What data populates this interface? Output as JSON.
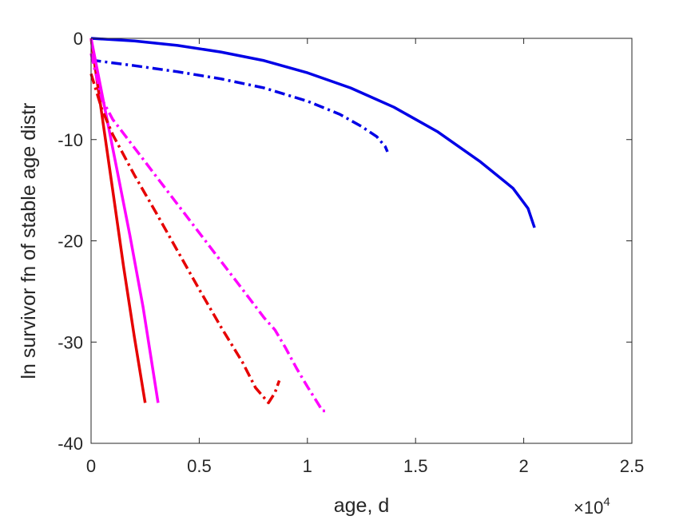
{
  "chart_data": {
    "type": "line",
    "title": "",
    "xlabel": "age, d",
    "ylabel": "ln survivor fn of stable age distr",
    "x_multiplier": {
      "base": "×10",
      "exponent": "4"
    },
    "xlim": [
      0,
      25000
    ],
    "ylim": [
      -40,
      0
    ],
    "xticks": [
      0,
      5000,
      10000,
      15000,
      20000,
      25000
    ],
    "xtick_labels": [
      "0",
      "0.5",
      "1",
      "1.5",
      "2",
      "2.5"
    ],
    "yticks": [
      -40,
      -30,
      -20,
      -10,
      0
    ],
    "ytick_labels": [
      "-40",
      "-30",
      "-20",
      "-10",
      "0"
    ],
    "grid": false,
    "legend": "none",
    "series": [
      {
        "color": "#0000e6",
        "style": "solid",
        "x": [
          0,
          2000,
          4000,
          6000,
          8000,
          10000,
          12000,
          14000,
          16000,
          18000,
          19500,
          20200,
          20500
        ],
        "y": [
          0,
          -0.25,
          -0.7,
          -1.35,
          -2.2,
          -3.4,
          -4.9,
          -6.8,
          -9.2,
          -12.2,
          -14.8,
          -16.8,
          -18.7
        ]
      },
      {
        "color": "#0000e6",
        "style": "dashdot",
        "x": [
          0,
          200,
          2000,
          4000,
          6000,
          8000,
          10000,
          11500,
          12500,
          13200,
          13600,
          13700
        ],
        "y": [
          -2.0,
          -2.2,
          -2.7,
          -3.3,
          -4.0,
          -4.9,
          -6.2,
          -7.5,
          -8.7,
          -9.7,
          -10.7,
          -11.2
        ]
      },
      {
        "color": "#e60000",
        "style": "solid",
        "x": [
          0,
          500,
          1000,
          1500,
          2000,
          2500
        ],
        "y": [
          0,
          -7.5,
          -15,
          -22.5,
          -29.5,
          -36
        ]
      },
      {
        "color": "#ff00ff",
        "style": "solid",
        "x": [
          0,
          600,
          1200,
          1800,
          2400,
          3100
        ],
        "y": [
          0,
          -6.5,
          -13,
          -19.5,
          -26.5,
          -36
        ]
      },
      {
        "color": "#e60000",
        "style": "dashdot",
        "x": [
          0,
          500,
          1000,
          2000,
          3000,
          4000,
          5000,
          6000,
          7000,
          7600,
          8200,
          8500,
          8700
        ],
        "y": [
          -3.5,
          -7,
          -9.5,
          -13.5,
          -17.2,
          -21.0,
          -24.8,
          -28.5,
          -32,
          -34.5,
          -36,
          -35,
          -33.8
        ]
      },
      {
        "color": "#ff00ff",
        "style": "dashdot",
        "x": [
          0,
          500,
          1000,
          2000,
          3000,
          4000,
          5000,
          6000,
          7000,
          8000,
          8500,
          9000,
          9500,
          10000,
          10700,
          11000
        ],
        "y": [
          -1.5,
          -6.0,
          -8.0,
          -10.8,
          -13.6,
          -16.4,
          -19.2,
          -22.0,
          -24.8,
          -27.6,
          -28.8,
          -30.6,
          -32.6,
          -34.4,
          -36.8,
          -36.8
        ]
      }
    ]
  }
}
